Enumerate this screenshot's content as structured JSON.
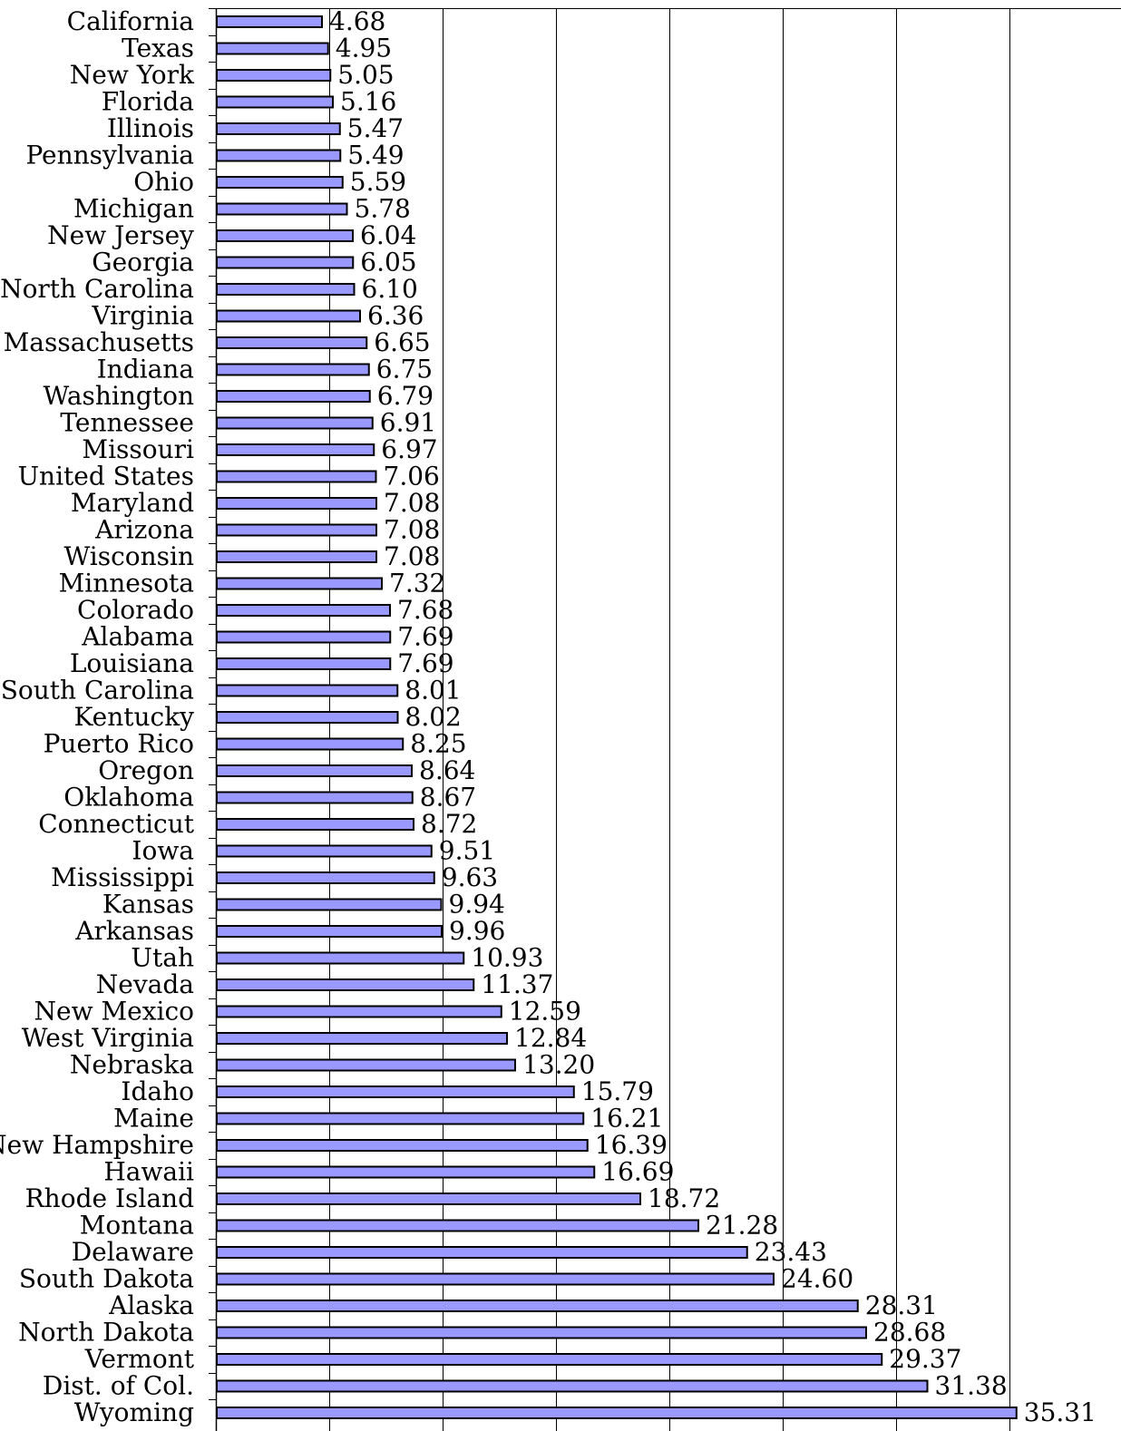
{
  "chart_data": {
    "type": "bar",
    "orientation": "horizontal",
    "title": "",
    "xlabel": "",
    "ylabel": "",
    "xlim": [
      0,
      35
    ],
    "grid": true,
    "bar_color": "#9999ff",
    "bar_outline_color": "#000000",
    "categories": [
      "California",
      "Texas",
      "New York",
      "Florida",
      "Illinois",
      "Pennsylvania",
      "Ohio",
      "Michigan",
      "New Jersey",
      "Georgia",
      "North Carolina",
      "Virginia",
      "Massachusetts",
      "Indiana",
      "Washington",
      "Tennessee",
      "Missouri",
      "United States",
      "Maryland",
      "Arizona",
      "Wisconsin",
      "Minnesota",
      "Colorado",
      "Alabama",
      "Louisiana",
      "South Carolina",
      "Kentucky",
      "Puerto Rico",
      "Oregon",
      "Oklahoma",
      "Connecticut",
      "Iowa",
      "Mississippi",
      "Kansas",
      "Arkansas",
      "Utah",
      "Nevada",
      "New Mexico",
      "West Virginia",
      "Nebraska",
      "Idaho",
      "Maine",
      "New Hampshire",
      "Hawaii",
      "Rhode Island",
      "Montana",
      "Delaware",
      "South Dakota",
      "Alaska",
      "North Dakota",
      "Vermont",
      "Dist. of Col.",
      "Wyoming"
    ],
    "values": [
      4.68,
      4.95,
      5.05,
      5.16,
      5.47,
      5.49,
      5.59,
      5.78,
      6.04,
      6.05,
      6.1,
      6.36,
      6.65,
      6.75,
      6.79,
      6.91,
      6.97,
      7.06,
      7.08,
      7.08,
      7.08,
      7.32,
      7.68,
      7.69,
      7.69,
      8.01,
      8.02,
      8.25,
      8.64,
      8.67,
      8.72,
      9.51,
      9.63,
      9.94,
      9.96,
      10.93,
      11.37,
      12.59,
      12.84,
      13.2,
      15.79,
      16.21,
      16.39,
      16.69,
      18.72,
      21.28,
      23.43,
      24.6,
      28.31,
      28.68,
      29.37,
      31.38,
      35.31
    ],
    "value_labels": [
      "4.68",
      "4.95",
      "5.05",
      "5.16",
      "5.47",
      "5.49",
      "5.59",
      "5.78",
      "6.04",
      "6.05",
      "6.10",
      "6.36",
      "6.65",
      "6.75",
      "6.79",
      "6.91",
      "6.97",
      "7.06",
      "7.08",
      "7.08",
      "7.08",
      "7.32",
      "7.68",
      "7.69",
      "7.69",
      "8.01",
      "8.02",
      "8.25",
      "8.64",
      "8.67",
      "8.72",
      "9.51",
      "9.63",
      "9.94",
      "9.96",
      "10.93",
      "11.37",
      "12.59",
      "12.84",
      "13.20",
      "15.79",
      "16.21",
      "16.39",
      "16.69",
      "18.72",
      "21.28",
      "23.43",
      "24.60",
      "28.31",
      "28.68",
      "29.37",
      "31.38",
      "35.31"
    ]
  }
}
